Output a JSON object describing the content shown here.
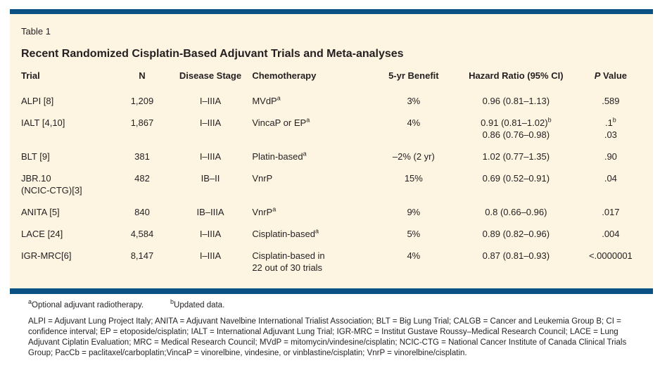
{
  "colors": {
    "bar_blue": "#0b5183",
    "panel_cream": "#fdf5e2",
    "text": "#231f20"
  },
  "table_label": "Table 1",
  "title": "Recent Randomized Cisplatin-Based Adjuvant Trials and Meta-analyses",
  "table": {
    "columns": [
      {
        "label": "Trial",
        "align": "left"
      },
      {
        "label": "N",
        "align": "center"
      },
      {
        "label": "Disease Stage",
        "align": "center"
      },
      {
        "label": "Chemotherapy",
        "align": "left"
      },
      {
        "label": "5-yr Benefit",
        "align": "center"
      },
      {
        "label": "Hazard Ratio (95% CI)",
        "align": "center"
      },
      {
        "label": "~{P} Value",
        "align": "center"
      }
    ],
    "rows": [
      {
        "trial": "ALPI [8]",
        "n": "1,209",
        "stage": "I–IIIA",
        "chemo": "MVdP^{a}",
        "benefit": "3%",
        "hazard_ratio": "0.96 (0.81–1.13)",
        "p_value": ".589"
      },
      {
        "trial": "IALT [4,10]",
        "n": "1,867",
        "stage": "I–IIIA",
        "chemo": "VincaP or EP^{a}",
        "benefit": "4%",
        "hazard_ratio": "0.91 (0.81–1.02)^{b}\n0.86 (0.76–0.98)",
        "p_value": ".1^{b}\n.03"
      },
      {
        "trial": "BLT [9]",
        "n": "381",
        "stage": "I–IIIA",
        "chemo": "Platin-based^{a}",
        "benefit": "–2% (2 yr)",
        "hazard_ratio": "1.02 (0.77–1.35)",
        "p_value": ".90"
      },
      {
        "trial": "JBR.10\n(NCIC-CTG)[3]",
        "n": "482",
        "stage": "IB–II",
        "chemo": "VnrP",
        "benefit": "15%",
        "hazard_ratio": "0.69 (0.52–0.91)",
        "p_value": ".04"
      },
      {
        "trial": "ANITA [5]",
        "n": "840",
        "stage": "IB–IIIA",
        "chemo": "VnrP^{a}",
        "benefit": "9%",
        "hazard_ratio": "0.8 (0.66–0.96)",
        "p_value": ".017"
      },
      {
        "trial": "LACE [24]",
        "n": "4,584",
        "stage": "I–IIIA",
        "chemo": "Cisplatin-based^{a}",
        "benefit": "5%",
        "hazard_ratio": "0.89 (0.82–0.96)",
        "p_value": ".004"
      },
      {
        "trial": "IGR-MRC[6]",
        "n": "8,147",
        "stage": "I–IIIA",
        "chemo": "Cisplatin-based in\n22 out of 30 trials",
        "benefit": "4%",
        "hazard_ratio": "0.87 (0.81–0.93)",
        "p_value": "<.0000001"
      }
    ]
  },
  "footnotes": {
    "note_a": "^{a}Optional adjuvant radiotherapy.",
    "note_b": "^{b}Updated data.",
    "abbreviations": "ALPI = Adjuvant Lung Project Italy; ANITA = Adjuvant Navelbine International Trialist Association; BLT = Big Lung Trial; CALGB = Cancer and Leukemia Group B; CI = confidence interval; EP = etoposide/cisplatin; IALT = International Adjuvant Lung Trial; IGR-MRC = Institut Gustave Roussy–Medical Research Council; LACE = Lung Adjuvant Ciplatin Evaluation; MRC = Medical Research Council; MVdP = mitomycin/vindesine/cisplatin; NCIC-CTG = National Cancer Institute of Canada Clinical Trials Group; PacCb = paclitaxel/carboplatin;VincaP = vinorelbine, vindesine, or vinblastine/cisplatin; VnrP = vinorelbine/cisplatin."
  }
}
